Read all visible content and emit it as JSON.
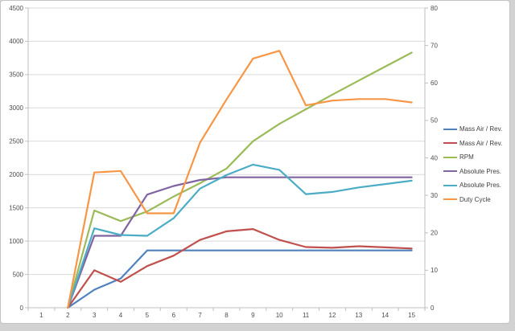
{
  "chart_data": {
    "type": "line",
    "title": "",
    "xlabel": "",
    "ylabel": "",
    "grid": true,
    "legend_position": "right",
    "categories": [
      1,
      2,
      3,
      4,
      5,
      6,
      7,
      8,
      9,
      10,
      11,
      12,
      13,
      14,
      15
    ],
    "x_axis": {
      "ticks": [
        "1",
        "2",
        "3",
        "4",
        "5",
        "6",
        "7",
        "8",
        "9",
        "10",
        "11",
        "12",
        "13",
        "14",
        "15"
      ]
    },
    "y_axis_left": {
      "min": 0,
      "max": 4500,
      "step": 500,
      "ticks": [
        "0",
        "500",
        "1000",
        "1500",
        "2000",
        "2500",
        "3000",
        "3500",
        "4000",
        "4500"
      ]
    },
    "y_axis_right": {
      "min": 0,
      "max": 80,
      "step": 10,
      "ticks": [
        "0",
        "10",
        "20",
        "30",
        "40",
        "50",
        "60",
        "70",
        "80"
      ]
    },
    "series": [
      {
        "name": "Mass Air / Rev.",
        "color": "#4F81BD",
        "axis": "right",
        "values": [
          null,
          0,
          4.8,
          7.8,
          15.3,
          15.3,
          15.3,
          15.3,
          15.3,
          15.3,
          15.3,
          15.3,
          15.3,
          15.3,
          15.3
        ]
      },
      {
        "name": "Mass Air / Rev.",
        "color": "#C0504D",
        "axis": "right",
        "values": [
          null,
          0,
          10.0,
          6.9,
          11.1,
          13.9,
          18.1,
          20.4,
          21.0,
          18.1,
          16.2,
          16.0,
          16.4,
          16.1,
          15.8
        ]
      },
      {
        "name": "RPM",
        "color": "#9BBB59",
        "axis": "left",
        "values": [
          null,
          0,
          1460,
          1300,
          1445,
          1670,
          1870,
          2090,
          2500,
          2760,
          2980,
          3200,
          3410,
          3620,
          3830
        ]
      },
      {
        "name": "Absolute Pres.",
        "color": "#8064A2",
        "axis": "right",
        "values": [
          null,
          0,
          19.2,
          19.2,
          30.2,
          32.5,
          34.1,
          34.8,
          34.8,
          34.8,
          34.8,
          34.8,
          34.8,
          34.8,
          34.8
        ]
      },
      {
        "name": "Absolute Pres.",
        "color": "#4BACC6",
        "axis": "right",
        "values": [
          null,
          0,
          21.2,
          19.4,
          19.2,
          23.9,
          31.8,
          35.4,
          38.2,
          36.8,
          30.3,
          30.9,
          32.1,
          33.0,
          33.9
        ]
      },
      {
        "name": "Duty Cycle",
        "color": "#F79646",
        "axis": "right",
        "values": [
          null,
          0,
          36.1,
          36.5,
          25.2,
          25.2,
          44.1,
          55.6,
          66.5,
          68.6,
          54.0,
          55.3,
          55.7,
          55.7,
          54.8
        ]
      }
    ],
    "style": {
      "gridline_color": "#D9D9D9",
      "axis_line_color": "#BFBFBF",
      "tick_label_color": "#4d4d4d",
      "legend_text_color": "#404040",
      "plot_background": "#ffffff"
    }
  }
}
